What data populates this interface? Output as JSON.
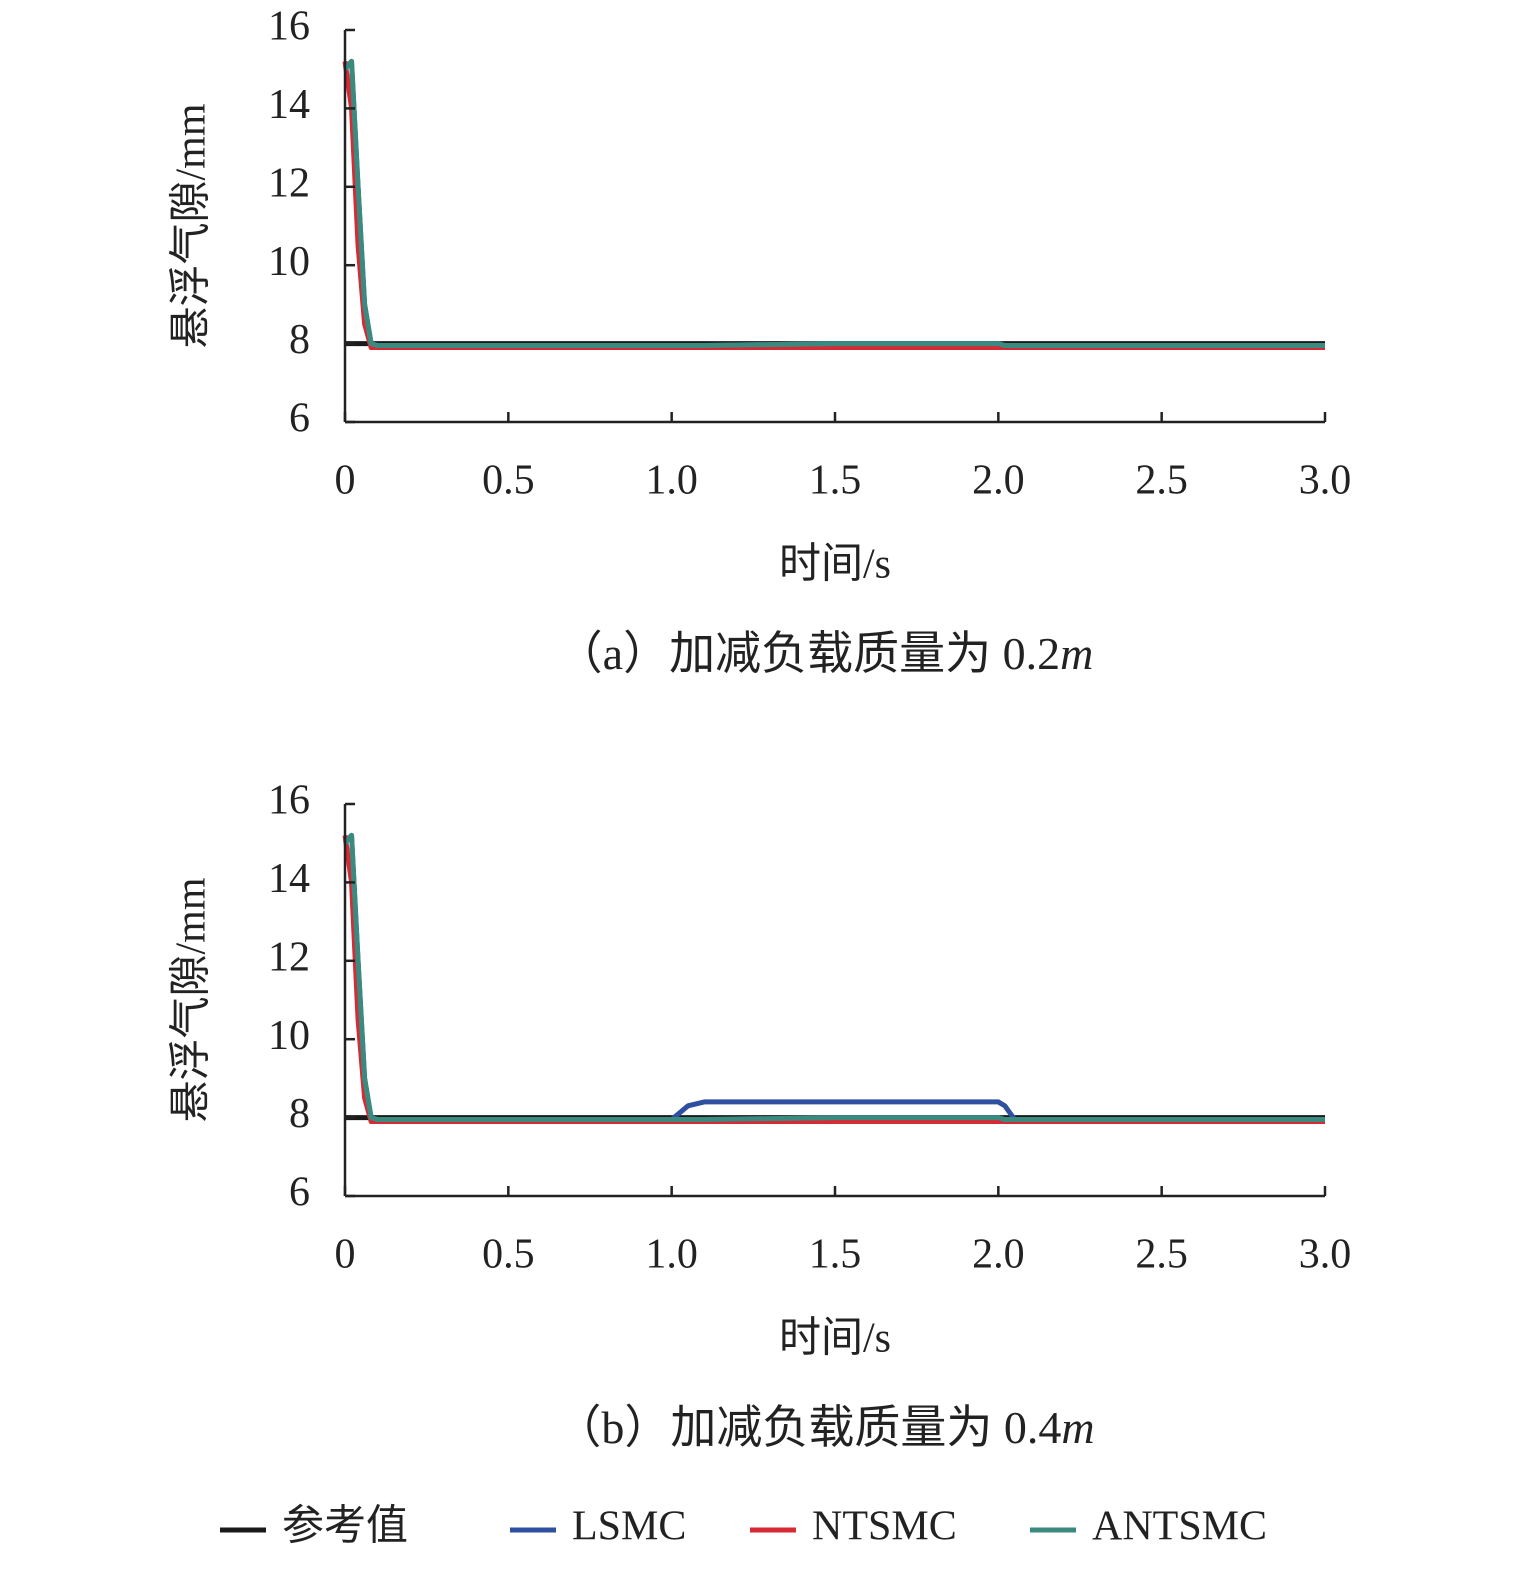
{
  "chart_data": [
    {
      "type": "line",
      "caption": "（a）加减负载质量为 0.2",
      "caption_unit": "m",
      "xlabel": "时间/s",
      "ylabel": "悬浮气隙/mm",
      "x": [
        0,
        0.02,
        0.04,
        0.06,
        0.08,
        0.1,
        0.5,
        1.0,
        1.05,
        1.1,
        1.5,
        2.0,
        2.02,
        2.05,
        2.5,
        3.0
      ],
      "xlim": [
        0,
        3
      ],
      "xticks": [
        0,
        0.5,
        {
          "value": 1,
          "label": "1.0"
        },
        1.5,
        {
          "value": 2,
          "label": "2.0"
        },
        2.5,
        {
          "value": 3,
          "label": "3.0"
        }
      ],
      "ylim": [
        6,
        16
      ],
      "yticks": [
        6,
        8,
        10,
        12,
        14,
        16
      ],
      "series": [
        {
          "name": "参考值",
          "color": "#1a1a1a",
          "values": [
            8,
            8,
            8,
            8,
            8,
            8,
            8,
            8,
            8,
            8,
            8,
            8,
            8,
            8,
            8,
            8
          ]
        },
        {
          "name": "LSMC",
          "color": "#2f4fa0",
          "values": [
            15,
            15.2,
            12,
            9,
            8,
            7.95,
            7.95,
            7.95,
            7.95,
            7.95,
            8,
            8,
            7.95,
            7.95,
            7.95,
            7.95
          ]
        },
        {
          "name": "NTSMC",
          "color": "#d62a34",
          "values": [
            15.2,
            14,
            10.5,
            8.5,
            7.9,
            7.9,
            7.9,
            7.9,
            7.9,
            7.9,
            7.9,
            7.9,
            7.9,
            7.9,
            7.9,
            7.9
          ]
        },
        {
          "name": "ANTSMC",
          "color": "#3a8a80",
          "values": [
            15,
            15.2,
            12,
            9,
            8,
            7.95,
            7.95,
            7.95,
            7.95,
            7.95,
            8,
            8,
            7.95,
            7.95,
            7.95,
            7.95
          ]
        }
      ]
    },
    {
      "type": "line",
      "caption": "（b）加减负载质量为 0.4",
      "caption_unit": "m",
      "xlabel": "时间/s",
      "ylabel": "悬浮气隙/mm",
      "x": [
        0,
        0.02,
        0.04,
        0.06,
        0.08,
        0.1,
        0.5,
        1.0,
        1.05,
        1.1,
        1.5,
        2.0,
        2.02,
        2.05,
        2.5,
        3.0
      ],
      "xlim": [
        0,
        3
      ],
      "xticks": [
        0,
        0.5,
        {
          "value": 1,
          "label": "1.0"
        },
        1.5,
        {
          "value": 2,
          "label": "2.0"
        },
        2.5,
        {
          "value": 3,
          "label": "3.0"
        }
      ],
      "ylim": [
        6,
        16
      ],
      "yticks": [
        6,
        8,
        10,
        12,
        14,
        16
      ],
      "series": [
        {
          "color": "#1a1a1a",
          "values": [
            8,
            8,
            8,
            8,
            8,
            8,
            8,
            8,
            8,
            8,
            8,
            8,
            8,
            8,
            8,
            8
          ]
        },
        {
          "color": "#2f4fa0",
          "values": [
            15,
            15.2,
            12,
            9,
            8,
            7.95,
            7.95,
            7.95,
            8.3,
            8.4,
            8.4,
            8.4,
            8.3,
            7.95,
            7.95,
            7.95
          ]
        },
        {
          "color": "#d62a34",
          "values": [
            15.2,
            14,
            10.5,
            8.5,
            7.9,
            7.9,
            7.9,
            7.9,
            7.9,
            7.9,
            7.9,
            7.9,
            7.9,
            7.9,
            7.9,
            7.9
          ]
        },
        {
          "color": "#3a8a80",
          "values": [
            15,
            15.2,
            12,
            9,
            8,
            7.95,
            7.95,
            7.95,
            7.95,
            7.95,
            8,
            8,
            7.95,
            7.95,
            7.95,
            7.95
          ]
        }
      ]
    }
  ]
}
